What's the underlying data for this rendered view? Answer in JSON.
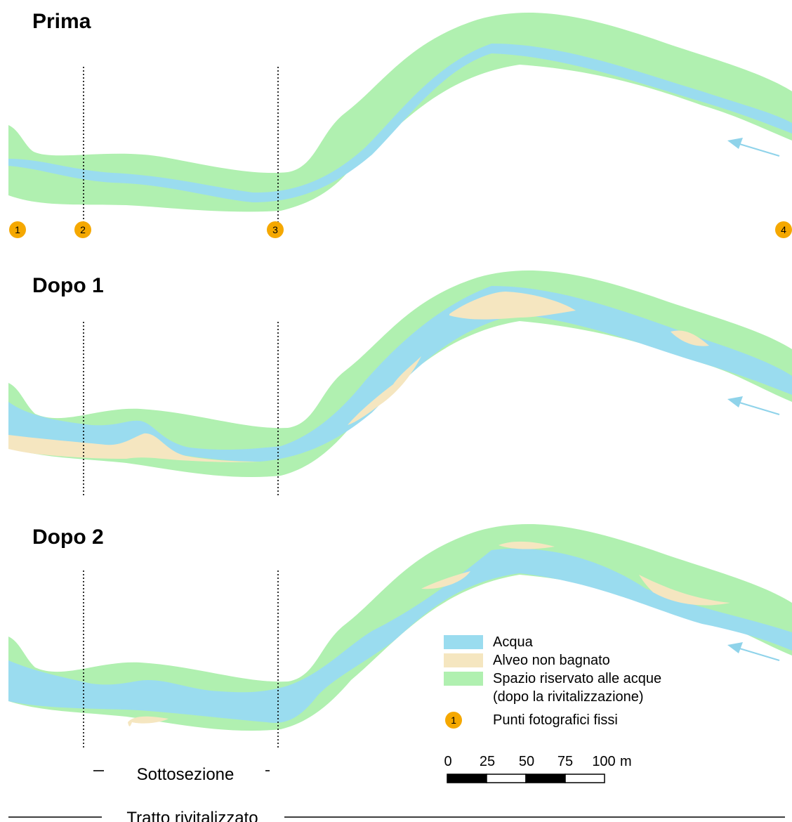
{
  "panels": [
    {
      "title": "Prima"
    },
    {
      "title": "Dopo 1"
    },
    {
      "title": "Dopo 2"
    }
  ],
  "photo_points": [
    "1",
    "2",
    "3",
    "4"
  ],
  "legend": {
    "items": [
      {
        "label": "Acqua",
        "color": "#9adcef"
      },
      {
        "label": "Alveo non bagnato",
        "color": "#f5e6c0"
      },
      {
        "label": "Spazio riservato alle acque",
        "color": "#b0f0b0"
      }
    ],
    "note": "(dopo la rivitalizzazione)",
    "point_symbol": "1",
    "point_label": "Punti fotografici fissi",
    "point_color": "#f5a800"
  },
  "scale_bar": {
    "ticks": [
      "0",
      "25",
      "50",
      "75",
      "100"
    ],
    "unit": "m"
  },
  "labels": {
    "subsection": "Sottosezione",
    "revitalized": "Tratto rivitalizzato"
  },
  "colors": {
    "water": "#9adcef",
    "dry_bed": "#f5e6c0",
    "reserved": "#b0f0b0",
    "flow_arrow": "#8fd3ea"
  }
}
